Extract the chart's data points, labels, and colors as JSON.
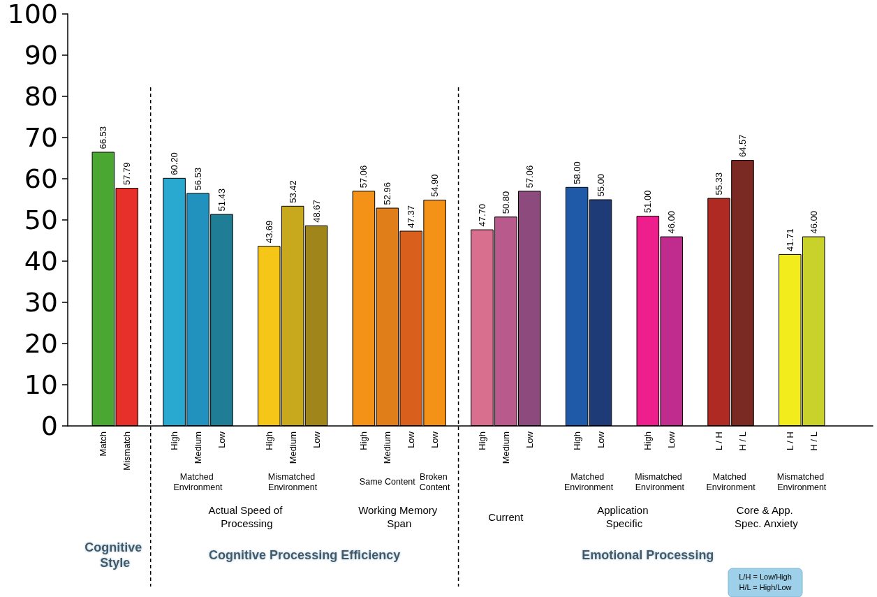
{
  "chart_data": {
    "type": "bar",
    "categories": [
      null,
      "Match",
      "Mismatch",
      null,
      "High",
      "Medium",
      "Low",
      null,
      "High",
      "Medium",
      "Low",
      null,
      "High",
      "Medium",
      "Low",
      "Low",
      null,
      "High",
      "Medium",
      "Low",
      null,
      "High",
      "Low",
      null,
      "High",
      "Low",
      null,
      "L / H",
      "H / L",
      null,
      "L / H",
      "H / L",
      null,
      null
    ],
    "values": [
      null,
      66.53,
      57.79,
      null,
      60.2,
      56.53,
      51.43,
      null,
      43.69,
      53.42,
      48.67,
      null,
      57.06,
      52.96,
      47.37,
      54.9,
      null,
      47.7,
      50.8,
      57.06,
      null,
      58.0,
      55.0,
      null,
      51.0,
      46.0,
      null,
      55.33,
      64.57,
      null,
      41.71,
      46.0,
      null,
      null
    ],
    "value_labels": [
      null,
      "66.53",
      "57.79",
      null,
      "60.20",
      "56.53",
      "51.43",
      null,
      "43.69",
      "53.42",
      "48.67",
      null,
      "57.06",
      "52.96",
      "47.37",
      "54.90",
      null,
      "47.70",
      "50.80",
      "57.06",
      null,
      "58.00",
      "55.00",
      null,
      "51.00",
      "46.00",
      null,
      "55.33",
      "64.57",
      null,
      "41.71",
      "46.00",
      null,
      null
    ],
    "colors": [
      null,
      "#4aa832",
      "#e8302a",
      null,
      "#29a9cf",
      "#2191bd",
      "#1f7e95",
      null,
      "#f5c518",
      "#c8a81c",
      "#a0851a",
      null,
      "#f39217",
      "#e07f1a",
      "#d95f1c",
      "#f39217",
      null,
      "#d86f8f",
      "#b95a8d",
      "#8c4a7d",
      null,
      "#1f5aa8",
      "#1e3b78",
      null,
      "#ee1e8c",
      "#c02c8e",
      null,
      "#b02a24",
      "#7a2a22",
      null,
      "#f2ec1c",
      "#c8d22a",
      null,
      null
    ],
    "ylim": [
      0,
      100
    ],
    "yticks": [
      0,
      10,
      20,
      30,
      40,
      50,
      60,
      70,
      80,
      90,
      100
    ],
    "annotations": [
      "Matched Environment",
      "Mismatched Environment",
      "Same Content",
      "Broken Content",
      "Matched Environment",
      "Mismatched Environment",
      "Matched Environment",
      "Mismatched Environment",
      "Actual Speed of Processing",
      "Working Memory Span",
      "Current",
      "Application Specific",
      "Core & App. Spec. Anxiety",
      "Cognitive Style",
      "Cognitive Processing Efficiency",
      "Emotional Processing",
      "L/H = Low/High",
      "H/L = High/Low"
    ]
  }
}
